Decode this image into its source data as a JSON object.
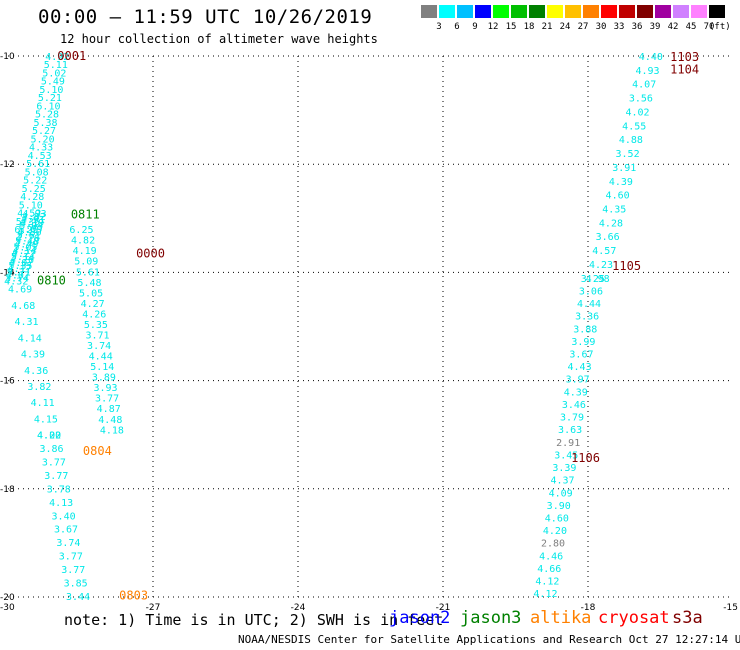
{
  "title": "00:00 – 11:59 UTC 10/26/2019",
  "subtitle": "12 hour collection of altimeter wave heights",
  "color_scale": {
    "labels": [
      "3",
      "6",
      "9",
      "12",
      "15",
      "18",
      "21",
      "24",
      "27",
      "30",
      "33",
      "36",
      "39",
      "42",
      "45",
      "70"
    ],
    "colors": [
      "#808080",
      "#00ffff",
      "#00c0ff",
      "#0000ff",
      "#00ff00",
      "#00c000",
      "#008000",
      "#ffff00",
      "#ffc000",
      "#ff8000",
      "#ff0000",
      "#c00000",
      "#800000",
      "#a000a0",
      "#d080ff",
      "#ff80ff",
      "#000000"
    ],
    "unit": "(ft)"
  },
  "axes": {
    "lon_labels": [
      "-30",
      "-27",
      "-24",
      "-21",
      "-18",
      "-15"
    ],
    "lat_labels": [
      "-10",
      "-12",
      "-14",
      "-16",
      "-18",
      "-20"
    ]
  },
  "time_labels": [
    {
      "text": "0001",
      "color": "#800000",
      "lon": -28.98,
      "lat": -10.0
    },
    {
      "text": "0000",
      "color": "#800000",
      "lon": -27.35,
      "lat": -13.65
    },
    {
      "text": "0811",
      "color": "#008000",
      "lon": -28.7,
      "lat": -12.93
    },
    {
      "text": "0810",
      "color": "#008000",
      "lon": -29.4,
      "lat": -14.15
    },
    {
      "text": "0804",
      "color": "#ff8000",
      "lon": -28.45,
      "lat": -17.3
    },
    {
      "text": "0803",
      "color": "#ff8000",
      "lon": -27.7,
      "lat": -19.97
    },
    {
      "text": "1103",
      "color": "#800000",
      "lon": -16.3,
      "lat": -10.02
    },
    {
      "text": "1104",
      "color": "#800000",
      "lon": -16.3,
      "lat": -10.25
    },
    {
      "text": "1105",
      "color": "#800000",
      "lon": -17.5,
      "lat": -13.88
    },
    {
      "text": "1106",
      "color": "#800000",
      "lon": -18.35,
      "lat": -17.43
    }
  ],
  "tracks": [
    {
      "name": "s3a_0001",
      "lon0": -28.98,
      "lat0": -10.0,
      "lon1": -29.62,
      "lat1": -13.2,
      "values": [
        "4.92",
        "5.11",
        "5.02",
        "5.49",
        "5.10",
        "5.21",
        "6.10",
        "5.28",
        "5.38",
        "5.27",
        "5.20",
        "4.33",
        "4.53",
        "5.61",
        "5.08",
        "5.22",
        "5.25",
        "4.28",
        "5.10",
        "4.52",
        "5.36",
        "6.25"
      ]
    },
    {
      "name": "jason3_0811",
      "lon0": -29.45,
      "lat0": -12.9,
      "lon1": -29.83,
      "lat1": -14.15,
      "values": [
        "4.93",
        "4.82",
        "4.91",
        "4.19",
        "5.04",
        "5.09",
        "4.80",
        "5.61",
        "4.76",
        "5.48",
        "4.49",
        "5.05",
        "4.14",
        "4.27",
        "5.14",
        "4.26",
        "4.07",
        "5.35",
        "4.17",
        "5.71",
        "4.07",
        "3.74",
        "4.32"
      ]
    },
    {
      "name": "s3a_0000",
      "lon0": -28.48,
      "lat0": -13.2,
      "lon1": -27.85,
      "lat1": -16.9,
      "values": [
        "6.25",
        "4.82",
        "4.19",
        "5.09",
        "5.61",
        "5.48",
        "5.05",
        "4.27",
        "4.26",
        "5.35",
        "3.71",
        "3.74",
        "4.44",
        "5.14",
        "3.89",
        "3.93",
        "3.77",
        "4.87",
        "4.48",
        "4.18"
      ]
    },
    {
      "name": "jason3_0810",
      "lon0": -29.75,
      "lat0": -14.3,
      "lon1": -29.15,
      "lat1": -17.0,
      "values": [
        "4.69",
        "4.68",
        "4.31",
        "4.14",
        "4.39",
        "4.36",
        "3.82",
        "4.11",
        "4.15",
        "4.22"
      ]
    },
    {
      "name": "altika_0804",
      "lon0": -29.15,
      "lat0": -17.0,
      "lon1": -28.55,
      "lat1": -19.98,
      "values": [
        "4.00",
        "3.86",
        "3.77",
        "3.77",
        "3.78",
        "4.13",
        "3.40",
        "3.67",
        "3.74",
        "3.77",
        "3.77",
        "3.85",
        "3.44"
      ]
    },
    {
      "name": "s3a_1103",
      "lon0": -16.7,
      "lat0": -10.0,
      "lon1": -17.8,
      "lat1": -14.1,
      "values": [
        "4.40",
        "4.93",
        "4.07",
        "3.56",
        "4.02",
        "4.55",
        "4.88",
        "3.52",
        "3.91",
        "4.39",
        "4.60",
        "4.35",
        "4.28",
        "3.66",
        "4.57",
        "4.23",
        "4.98"
      ]
    },
    {
      "name": "s3a_1105",
      "lon0": -17.9,
      "lat0": -14.1,
      "lon1": -18.88,
      "lat1": -19.93,
      "values": [
        "3.25",
        "3.06",
        "4.44",
        "3.36",
        "3.88",
        "3.99",
        "3.67",
        "4.43",
        "3.97",
        "4.39",
        "3.46",
        "3.79",
        "3.63",
        "2.91",
        "3.45",
        "3.39",
        "4.37",
        "4.09",
        "3.90",
        "4.60",
        "4.20",
        "2.80",
        "4.46",
        "4.66",
        "4.12",
        "4.12"
      ]
    }
  ],
  "note": "note: 1) Time is in UTC; 2) SWH is in feet",
  "legend": [
    {
      "label": "jason2",
      "color": "#0000ff"
    },
    {
      "label": "jason3",
      "color": "#008000"
    },
    {
      "label": "altika",
      "color": "#ff8000"
    },
    {
      "label": "cryosat",
      "color": "#ff0000"
    },
    {
      "label": "s3a",
      "color": "#800000"
    }
  ],
  "footer": "NOAA/NESDIS Center for Satellite Applications and Research   Oct 27 12:27:14 UTC 2019"
}
